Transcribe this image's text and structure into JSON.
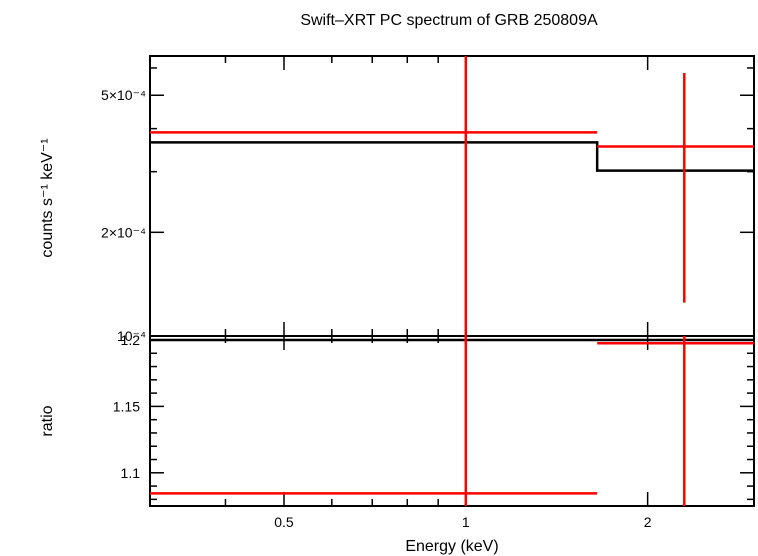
{
  "chart_data": [
    {
      "type": "step-line with error bars",
      "panel": "spectrum",
      "title": "Swift–XRT PC spectrum of GRB 250809A",
      "ylabel": "counts s⁻¹ keV⁻¹",
      "xscale": "log",
      "yscale": "log",
      "xlim": [
        0.3,
        3.0
      ],
      "ylim": [
        0.0001,
        0.00065
      ],
      "yticks": [
        {
          "value": 0.0005,
          "label": "5×10⁻⁴"
        },
        {
          "value": 0.0002,
          "label": "2×10⁻⁴"
        },
        {
          "value": 0.0001,
          "label": "10⁻⁴"
        }
      ],
      "series": [
        {
          "role": "data",
          "color": "#ff0000",
          "points": [
            {
              "x": 1.0,
              "x_lo": 0.3,
              "x_hi": 1.65,
              "y": 0.00039,
              "y_lo": 0.0001,
              "y_hi": 0.00065
            },
            {
              "x": 2.3,
              "x_lo": 1.65,
              "x_hi": 3.0,
              "y": 0.000355,
              "y_lo": 0.000125,
              "y_hi": 0.00058
            }
          ]
        },
        {
          "role": "model",
          "color": "#000000",
          "steps": [
            {
              "x_lo": 0.3,
              "x_hi": 1.65,
              "y": 0.000365
            },
            {
              "x_lo": 1.65,
              "x_hi": 3.0,
              "y": 0.000302
            }
          ]
        }
      ]
    },
    {
      "type": "step-line with error bars",
      "panel": "ratio",
      "ylabel": "ratio",
      "xlabel": "Energy (keV)",
      "xscale": "log",
      "xlim": [
        0.3,
        3.0
      ],
      "ylim": [
        1.075,
        1.203
      ],
      "yticks": [
        {
          "value": 1.2,
          "label": "1.2"
        },
        {
          "value": 1.15,
          "label": "1.15"
        },
        {
          "value": 1.1,
          "label": "1.1"
        }
      ],
      "xticks": [
        {
          "value": 0.5,
          "label": "0.5"
        },
        {
          "value": 1,
          "label": "1"
        },
        {
          "value": 2,
          "label": "2"
        }
      ],
      "series": [
        {
          "role": "data",
          "color": "#ff0000",
          "points": [
            {
              "x": 1.0,
              "x_lo": 0.3,
              "x_hi": 1.65,
              "y": 1.0845,
              "y_lo": 1.075,
              "y_hi": 1.203
            },
            {
              "x": 2.3,
              "x_lo": 1.65,
              "x_hi": 3.0,
              "y": 1.1975,
              "y_lo": 1.075,
              "y_hi": 1.203
            }
          ]
        },
        {
          "role": "reference",
          "color": "#000000",
          "y": 1.2
        }
      ]
    }
  ]
}
